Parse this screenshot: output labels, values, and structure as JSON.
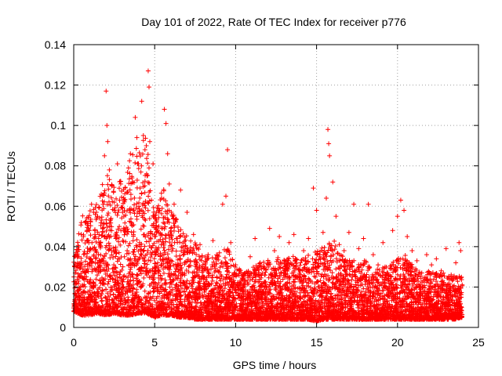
{
  "chart_data": {
    "type": "scatter",
    "title": "Day 101 of 2022, Rate Of TEC Index for receiver p776",
    "xlabel": "GPS time / hours",
    "ylabel": "ROTI / TECUs",
    "xlim": [
      0,
      25
    ],
    "ylim": [
      0,
      0.14
    ],
    "xticks": [
      0,
      5,
      10,
      15,
      20,
      25
    ],
    "xtick_labels": [
      "0",
      "5",
      "10",
      "15",
      "20",
      "25"
    ],
    "yticks": [
      0,
      0.02,
      0.04,
      0.06,
      0.08,
      0.1,
      0.12,
      0.14
    ],
    "ytick_labels": [
      "0",
      "0.02",
      "0.04",
      "0.06",
      "0.08",
      "0.1",
      "0.12",
      "0.14"
    ],
    "grid": true,
    "marker": "+",
    "color": "#ff0000",
    "series": [
      {
        "name": "ROTI",
        "points": [
          [
            0.1,
            0.012
          ],
          [
            0.2,
            0.018
          ],
          [
            0.3,
            0.009
          ],
          [
            0.4,
            0.025
          ],
          [
            0.5,
            0.032
          ],
          [
            0.6,
            0.045
          ],
          [
            0.7,
            0.052
          ],
          [
            0.8,
            0.028
          ],
          [
            0.9,
            0.015
          ],
          [
            1.0,
            0.038
          ],
          [
            1.1,
            0.061
          ],
          [
            1.2,
            0.022
          ],
          [
            1.3,
            0.048
          ],
          [
            1.4,
            0.057
          ],
          [
            1.5,
            0.019
          ],
          [
            1.6,
            0.041
          ],
          [
            1.7,
            0.066
          ],
          [
            1.8,
            0.033
          ],
          [
            1.9,
            0.085
          ],
          [
            2.0,
            0.117
          ],
          [
            2.05,
            0.1
          ],
          [
            2.1,
            0.092
          ],
          [
            2.2,
            0.078
          ],
          [
            2.3,
            0.054
          ],
          [
            2.4,
            0.029
          ],
          [
            2.5,
            0.062
          ],
          [
            2.6,
            0.044
          ],
          [
            2.7,
            0.081
          ],
          [
            2.8,
            0.037
          ],
          [
            2.9,
            0.071
          ],
          [
            3.0,
            0.023
          ],
          [
            3.1,
            0.055
          ],
          [
            3.2,
            0.048
          ],
          [
            3.3,
            0.067
          ],
          [
            3.4,
            0.031
          ],
          [
            3.5,
            0.086
          ],
          [
            3.6,
            0.074
          ],
          [
            3.7,
            0.058
          ],
          [
            3.8,
            0.104
          ],
          [
            3.9,
            0.094
          ],
          [
            4.0,
            0.081
          ],
          [
            4.1,
            0.069
          ],
          [
            4.2,
            0.112
          ],
          [
            4.3,
            0.095
          ],
          [
            4.4,
            0.088
          ],
          [
            4.5,
            0.076
          ],
          [
            4.6,
            0.127
          ],
          [
            4.65,
            0.119
          ],
          [
            4.7,
            0.092
          ],
          [
            4.8,
            0.063
          ],
          [
            4.9,
            0.081
          ],
          [
            5.0,
            0.045
          ],
          [
            5.1,
            0.052
          ],
          [
            5.2,
            0.036
          ],
          [
            5.3,
            0.058
          ],
          [
            5.4,
            0.041
          ],
          [
            5.6,
            0.108
          ],
          [
            5.7,
            0.101
          ],
          [
            5.8,
            0.086
          ],
          [
            5.9,
            0.071
          ],
          [
            6.0,
            0.049
          ],
          [
            6.2,
            0.061
          ],
          [
            6.4,
            0.044
          ],
          [
            6.6,
            0.068
          ],
          [
            6.8,
            0.038
          ],
          [
            7.0,
            0.057
          ],
          [
            7.2,
            0.033
          ],
          [
            7.4,
            0.046
          ],
          [
            7.6,
            0.029
          ],
          [
            7.8,
            0.041
          ],
          [
            8.0,
            0.024
          ],
          [
            8.3,
            0.036
          ],
          [
            8.6,
            0.043
          ],
          [
            8.9,
            0.028
          ],
          [
            9.2,
            0.061
          ],
          [
            9.4,
            0.065
          ],
          [
            9.5,
            0.088
          ],
          [
            9.7,
            0.042
          ],
          [
            10.0,
            0.031
          ],
          [
            10.3,
            0.022
          ],
          [
            10.6,
            0.027
          ],
          [
            10.9,
            0.035
          ],
          [
            11.2,
            0.044
          ],
          [
            11.5,
            0.031
          ],
          [
            11.8,
            0.026
          ],
          [
            12.1,
            0.049
          ],
          [
            12.4,
            0.038
          ],
          [
            12.7,
            0.045
          ],
          [
            13.0,
            0.033
          ],
          [
            13.3,
            0.042
          ],
          [
            13.6,
            0.046
          ],
          [
            13.9,
            0.029
          ],
          [
            14.2,
            0.038
          ],
          [
            14.5,
            0.044
          ],
          [
            14.8,
            0.069
          ],
          [
            15.0,
            0.058
          ],
          [
            15.2,
            0.036
          ],
          [
            15.4,
            0.047
          ],
          [
            15.6,
            0.064
          ],
          [
            15.7,
            0.098
          ],
          [
            15.75,
            0.091
          ],
          [
            15.8,
            0.085
          ],
          [
            16.0,
            0.072
          ],
          [
            16.2,
            0.055
          ],
          [
            16.4,
            0.041
          ],
          [
            16.7,
            0.038
          ],
          [
            17.0,
            0.047
          ],
          [
            17.3,
            0.061
          ],
          [
            17.6,
            0.039
          ],
          [
            17.9,
            0.044
          ],
          [
            18.2,
            0.061
          ],
          [
            18.5,
            0.036
          ],
          [
            18.8,
            0.031
          ],
          [
            19.1,
            0.042
          ],
          [
            19.4,
            0.027
          ],
          [
            19.7,
            0.048
          ],
          [
            20.0,
            0.055
          ],
          [
            20.2,
            0.063
          ],
          [
            20.4,
            0.058
          ],
          [
            20.6,
            0.045
          ],
          [
            20.9,
            0.038
          ],
          [
            21.2,
            0.033
          ],
          [
            21.5,
            0.027
          ],
          [
            21.8,
            0.036
          ],
          [
            22.1,
            0.031
          ],
          [
            22.4,
            0.034
          ],
          [
            22.7,
            0.028
          ],
          [
            23.0,
            0.039
          ],
          [
            23.3,
            0.025
          ],
          [
            23.6,
            0.032
          ],
          [
            23.8,
            0.042
          ],
          [
            23.9,
            0.038
          ]
        ],
        "baseline_envelope": [
          [
            0,
            0.008,
            0.034
          ],
          [
            0.5,
            0.006,
            0.055
          ],
          [
            1,
            0.006,
            0.058
          ],
          [
            1.5,
            0.007,
            0.062
          ],
          [
            2,
            0.006,
            0.078
          ],
          [
            2.5,
            0.007,
            0.07
          ],
          [
            3,
            0.006,
            0.074
          ],
          [
            3.5,
            0.006,
            0.085
          ],
          [
            4,
            0.007,
            0.09
          ],
          [
            4.5,
            0.007,
            0.095
          ],
          [
            5,
            0.005,
            0.055
          ],
          [
            5.5,
            0.006,
            0.07
          ],
          [
            6,
            0.006,
            0.058
          ],
          [
            6.5,
            0.005,
            0.052
          ],
          [
            7,
            0.005,
            0.046
          ],
          [
            7.5,
            0.004,
            0.042
          ],
          [
            8,
            0.004,
            0.036
          ],
          [
            8.5,
            0.004,
            0.034
          ],
          [
            9,
            0.004,
            0.038
          ],
          [
            9.5,
            0.004,
            0.04
          ],
          [
            10,
            0.004,
            0.03
          ],
          [
            10.5,
            0.004,
            0.028
          ],
          [
            11,
            0.004,
            0.03
          ],
          [
            11.5,
            0.004,
            0.032
          ],
          [
            12,
            0.004,
            0.034
          ],
          [
            12.5,
            0.004,
            0.035
          ],
          [
            13,
            0.004,
            0.034
          ],
          [
            13.5,
            0.004,
            0.036
          ],
          [
            14,
            0.004,
            0.033
          ],
          [
            14.5,
            0.004,
            0.036
          ],
          [
            15,
            0.003,
            0.038
          ],
          [
            15.5,
            0.004,
            0.04
          ],
          [
            16,
            0.004,
            0.045
          ],
          [
            16.5,
            0.004,
            0.036
          ],
          [
            17,
            0.004,
            0.034
          ],
          [
            17.5,
            0.004,
            0.033
          ],
          [
            18,
            0.004,
            0.034
          ],
          [
            18.5,
            0.004,
            0.03
          ],
          [
            19,
            0.004,
            0.03
          ],
          [
            19.5,
            0.004,
            0.032
          ],
          [
            20,
            0.004,
            0.034
          ],
          [
            20.5,
            0.004,
            0.036
          ],
          [
            21,
            0.004,
            0.03
          ],
          [
            21.5,
            0.004,
            0.027
          ],
          [
            22,
            0.004,
            0.028
          ],
          [
            22.5,
            0.004,
            0.027
          ],
          [
            23,
            0.004,
            0.027
          ],
          [
            23.5,
            0.004,
            0.026
          ],
          [
            24,
            0.005,
            0.025
          ]
        ]
      }
    ]
  }
}
